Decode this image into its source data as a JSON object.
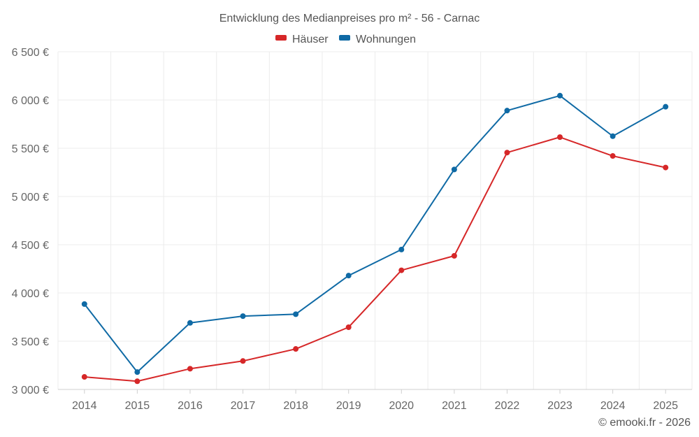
{
  "chart_data": {
    "type": "line",
    "title": "Entwicklung des Medianpreises pro m² - 56 - Carnac",
    "categories": [
      "2014",
      "2015",
      "2016",
      "2017",
      "2018",
      "2019",
      "2020",
      "2021",
      "2022",
      "2023",
      "2024",
      "2025"
    ],
    "series": [
      {
        "name": "Häuser",
        "color": "#d62728",
        "values": [
          3130,
          3085,
          3215,
          3295,
          3420,
          3645,
          4235,
          4385,
          5455,
          5615,
          5420,
          5300
        ]
      },
      {
        "name": "Wohnungen",
        "color": "#0f6aa5",
        "values": [
          3885,
          3180,
          3690,
          3760,
          3780,
          4180,
          4450,
          5280,
          5890,
          6045,
          5625,
          5930
        ]
      }
    ],
    "ylim": [
      3000,
      6500
    ],
    "yticks": [
      3000,
      3500,
      4000,
      4500,
      5000,
      5500,
      6000,
      6500
    ],
    "ytick_labels": [
      "3 000 €",
      "3 500 €",
      "4 000 €",
      "4 500 €",
      "5 000 €",
      "5 500 €",
      "6 000 €",
      "6 500 €"
    ],
    "xlabel": "",
    "ylabel": "",
    "legend_position": "top-center",
    "grid": true
  },
  "credit": "© emooki.fr - 2026"
}
